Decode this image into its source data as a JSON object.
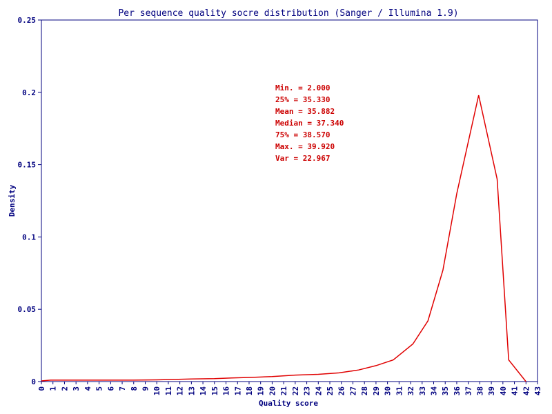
{
  "chart_data": {
    "type": "line",
    "title": "Per sequence quality socre distribution (Sanger / Illumina 1.9)",
    "xlabel": "Quality score",
    "ylabel": "Density",
    "xlim": [
      0,
      43
    ],
    "ylim": [
      0,
      0.25
    ],
    "x_ticks": [
      "0",
      "1",
      "2",
      "3",
      "4",
      "5",
      "6",
      "7",
      "8",
      "9",
      "10",
      "11",
      "12",
      "13",
      "14",
      "15",
      "16",
      "17",
      "18",
      "19",
      "20",
      "21",
      "22",
      "23",
      "24",
      "25",
      "26",
      "27",
      "28",
      "29",
      "30",
      "31",
      "32",
      "33",
      "34",
      "35",
      "36",
      "37",
      "38",
      "39",
      "40",
      "41",
      "42",
      "43"
    ],
    "y_ticks": [
      "0",
      "0.05",
      "0.1",
      "0.15",
      "0.2",
      "0.25"
    ],
    "y_tick_values": [
      0,
      0.05,
      0.1,
      0.15,
      0.2,
      0.25
    ],
    "grid": false,
    "line_color": "#e00000",
    "axis_color": "#00007f",
    "series": [
      {
        "x": [
          0,
          0.8,
          2.3,
          4.2,
          6.0,
          8.0,
          10.0,
          11.5,
          13.0,
          15.0,
          16.5,
          18.5,
          20.0,
          22.0,
          24.0,
          25.8,
          27.5,
          29.0,
          30.5,
          32.2,
          33.5,
          34.8,
          36.0,
          37.9,
          39.5,
          40.5,
          42.0
        ],
        "y": [
          0.0005,
          0.001,
          0.001,
          0.001,
          0.001,
          0.001,
          0.0012,
          0.0015,
          0.0018,
          0.002,
          0.0025,
          0.003,
          0.0035,
          0.0045,
          0.005,
          0.006,
          0.008,
          0.011,
          0.015,
          0.026,
          0.042,
          0.077,
          0.13,
          0.198,
          0.14,
          0.015,
          0.0
        ]
      }
    ],
    "annotations": [
      "Min. = 2.000",
      "25% = 35.330",
      "Mean = 35.882",
      "Median = 37.340",
      "75% = 38.570",
      "Max. = 39.920",
      "Var = 22.967"
    ]
  }
}
